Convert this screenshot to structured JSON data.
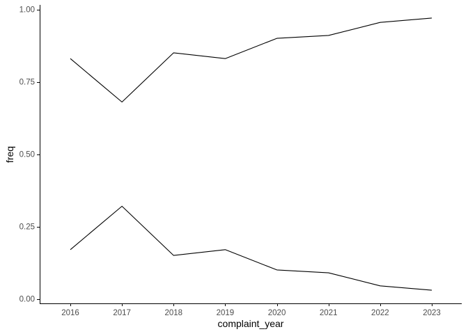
{
  "chart_data": {
    "type": "line",
    "xlabel": "complaint_year",
    "ylabel": "freq",
    "x": [
      2016,
      2017,
      2018,
      2019,
      2020,
      2021,
      2022,
      2023
    ],
    "ylim": [
      0,
      1
    ],
    "yticks": [
      "0.00",
      "0.25",
      "0.50",
      "0.75",
      "1.00"
    ],
    "series": [
      {
        "values": [
          0.83,
          0.68,
          0.85,
          0.83,
          0.9,
          0.91,
          0.955,
          0.97
        ],
        "color": "#000000"
      },
      {
        "values": [
          0.17,
          0.32,
          0.15,
          0.17,
          0.1,
          0.09,
          0.045,
          0.03
        ],
        "color": "#000000"
      }
    ],
    "grid": false,
    "legend": "none"
  }
}
